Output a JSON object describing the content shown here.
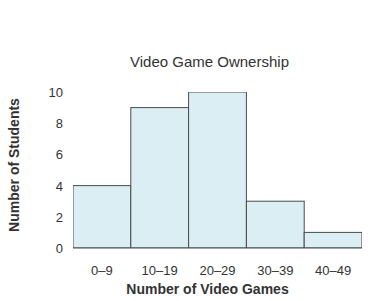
{
  "chart_data": {
    "type": "bar",
    "title": "Video Game Ownership",
    "x_label": "Number of Video Games",
    "y_label": "Number of Students",
    "categories": [
      "0–9",
      "10–19",
      "20–29",
      "30–39",
      "40–49"
    ],
    "values": [
      4,
      9,
      10,
      3,
      1
    ],
    "color": "#daeef3",
    "ylim": [
      0,
      10
    ],
    "yticks": [
      0,
      2,
      4,
      6,
      8,
      10
    ],
    "grid": false
  }
}
